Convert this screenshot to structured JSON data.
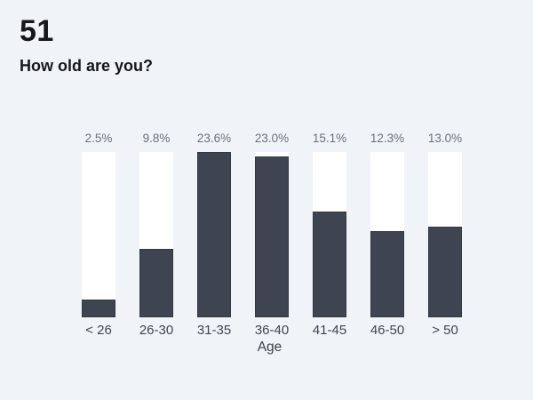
{
  "page": {
    "background_color": "#f0f3f8",
    "title": "51",
    "question": "How old are you?",
    "title_color": "#15171c"
  },
  "chart_data": {
    "type": "bar",
    "title": "51",
    "subtitle": "How old are you?",
    "categories": [
      "< 26",
      "26-30",
      "31-35",
      "36-40",
      "41-45",
      "46-50",
      "> 50"
    ],
    "values": [
      2.5,
      9.8,
      23.6,
      23.0,
      15.1,
      12.3,
      13.0
    ],
    "value_labels": [
      "2.5%",
      "9.8%",
      "23.6%",
      "23.0%",
      "15.1%",
      "12.3%",
      "13.0%"
    ],
    "xlabel": "Age",
    "ylabel": "",
    "ylim": [
      0,
      23.6
    ],
    "grid": false,
    "legend": false,
    "bar_color": "#3e4450",
    "track_color": "#ffffff",
    "value_label_color": "#6a6f7b",
    "category_label_color": "#3f4551",
    "xlabel_color": "#3a3f49"
  }
}
